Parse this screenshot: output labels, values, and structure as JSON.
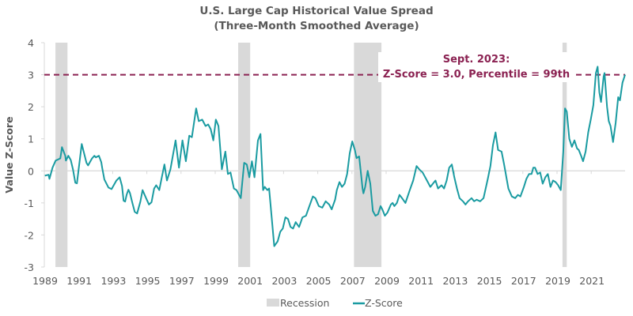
{
  "chart_data": {
    "type": "line",
    "title": "U.S. Large Cap Historical Value Spread",
    "subtitle": "(Three-Month Smoothed Average)",
    "xlabel": "",
    "ylabel": "Value Z-Score",
    "ylim": [
      -3,
      4
    ],
    "yticks": [
      4,
      3,
      2,
      1,
      0,
      -1,
      -2,
      -3
    ],
    "xlim": [
      1989.9,
      2023.75
    ],
    "xtick_labels": [
      "1989",
      "1991",
      "1993",
      "1995",
      "1997",
      "1999",
      "2001",
      "2003",
      "2005",
      "2007",
      "2009",
      "2011",
      "2013",
      "2015",
      "2017",
      "2019",
      "2021"
    ],
    "grid": false,
    "zero_line": true,
    "legend": "bottom",
    "legend_entries": [
      "Recession",
      "Z-Score"
    ],
    "colors": {
      "zscore": "#1a9ba1",
      "recession": "#d9d9d9",
      "threshold": "#8b2252",
      "axis": "#d9d9d9",
      "text": "#595959"
    },
    "recessions": [
      [
        1990.55,
        1991.25
      ],
      [
        2001.2,
        2001.9
      ],
      [
        2007.95,
        2009.55
      ],
      [
        2020.1,
        2020.35
      ]
    ],
    "threshold": {
      "value": 3.0,
      "style": "dashed"
    },
    "annotation": {
      "line1": "Sept. 2023:",
      "line2": "Z-Score = 3.0, Percentile = 99th"
    },
    "series": [
      {
        "name": "Z-Score",
        "points": [
          [
            1989.93,
            -0.15
          ],
          [
            1990.15,
            -0.12
          ],
          [
            1990.2,
            -0.25
          ],
          [
            1990.38,
            0.1
          ],
          [
            1990.56,
            0.32
          ],
          [
            1990.83,
            0.39
          ],
          [
            1990.88,
            0.56
          ],
          [
            1990.93,
            0.74
          ],
          [
            1991.12,
            0.47
          ],
          [
            1991.16,
            0.32
          ],
          [
            1991.3,
            0.47
          ],
          [
            1991.44,
            0.34
          ],
          [
            1991.57,
            0.05
          ],
          [
            1991.71,
            -0.37
          ],
          [
            1991.8,
            -0.39
          ],
          [
            1992.08,
            0.84
          ],
          [
            1992.36,
            0.25
          ],
          [
            1992.45,
            0.17
          ],
          [
            1992.68,
            0.39
          ],
          [
            1992.82,
            0.47
          ],
          [
            1992.9,
            0.42
          ],
          [
            1993.08,
            0.47
          ],
          [
            1993.22,
            0.27
          ],
          [
            1993.27,
            0.1
          ],
          [
            1993.4,
            -0.27
          ],
          [
            1993.64,
            -0.52
          ],
          [
            1993.82,
            -0.57
          ],
          [
            1994.1,
            -0.3
          ],
          [
            1994.29,
            -0.2
          ],
          [
            1994.43,
            -0.47
          ],
          [
            1994.52,
            -0.93
          ],
          [
            1994.61,
            -0.96
          ],
          [
            1994.7,
            -0.74
          ],
          [
            1994.8,
            -0.59
          ],
          [
            1994.89,
            -0.69
          ],
          [
            1995.03,
            -0.99
          ],
          [
            1995.17,
            -1.28
          ],
          [
            1995.31,
            -1.33
          ],
          [
            1995.5,
            -0.96
          ],
          [
            1995.63,
            -0.6
          ],
          [
            1995.83,
            -0.85
          ],
          [
            1996.0,
            -1.05
          ],
          [
            1996.15,
            -0.98
          ],
          [
            1996.3,
            -0.55
          ],
          [
            1996.42,
            -0.45
          ],
          [
            1996.6,
            -0.6
          ],
          [
            1996.75,
            -0.2
          ],
          [
            1996.9,
            0.2
          ],
          [
            1997.05,
            -0.3
          ],
          [
            1997.25,
            0.05
          ],
          [
            1997.55,
            0.95
          ],
          [
            1997.75,
            0.1
          ],
          [
            1997.95,
            0.95
          ],
          [
            1998.15,
            0.3
          ],
          [
            1998.35,
            1.1
          ],
          [
            1998.5,
            1.05
          ],
          [
            1998.75,
            1.95
          ],
          [
            1998.9,
            1.55
          ],
          [
            1999.1,
            1.6
          ],
          [
            1999.3,
            1.4
          ],
          [
            1999.45,
            1.45
          ],
          [
            1999.6,
            1.3
          ],
          [
            1999.75,
            0.95
          ],
          [
            1999.9,
            1.6
          ],
          [
            2000.05,
            1.4
          ],
          [
            2000.25,
            0.05
          ],
          [
            2000.45,
            0.6
          ],
          [
            2000.6,
            -0.1
          ],
          [
            2000.75,
            -0.05
          ],
          [
            2000.95,
            -0.55
          ],
          [
            2001.1,
            -0.6
          ],
          [
            2001.35,
            -0.85
          ],
          [
            2001.55,
            0.25
          ],
          [
            2001.7,
            0.2
          ],
          [
            2001.85,
            -0.2
          ],
          [
            2002.0,
            0.3
          ],
          [
            2002.15,
            -0.2
          ],
          [
            2002.35,
            0.95
          ],
          [
            2002.5,
            1.15
          ],
          [
            2002.65,
            -0.6
          ],
          [
            2002.75,
            -0.5
          ],
          [
            2002.9,
            -0.6
          ],
          [
            2003.0,
            -0.55
          ],
          [
            2003.3,
            -2.35
          ],
          [
            2003.5,
            -2.2
          ],
          [
            2003.65,
            -1.9
          ],
          [
            2003.8,
            -1.8
          ],
          [
            2003.95,
            -1.45
          ],
          [
            2004.1,
            -1.5
          ],
          [
            2004.25,
            -1.75
          ],
          [
            2004.4,
            -1.8
          ],
          [
            2004.55,
            -1.6
          ],
          [
            2004.75,
            -1.75
          ],
          [
            2004.95,
            -1.45
          ],
          [
            2005.15,
            -1.4
          ],
          [
            2005.35,
            -1.1
          ],
          [
            2005.55,
            -0.8
          ],
          [
            2005.7,
            -0.85
          ],
          [
            2005.9,
            -1.1
          ],
          [
            2006.1,
            -1.15
          ],
          [
            2006.3,
            -0.95
          ],
          [
            2006.5,
            -1.05
          ],
          [
            2006.65,
            -1.2
          ],
          [
            2006.85,
            -0.9
          ],
          [
            2006.95,
            -0.6
          ],
          [
            2007.1,
            -0.35
          ],
          [
            2007.25,
            -0.5
          ],
          [
            2007.4,
            -0.4
          ],
          [
            2007.55,
            -0.1
          ],
          [
            2007.7,
            0.55
          ],
          [
            2007.85,
            0.92
          ],
          [
            2008.0,
            0.65
          ],
          [
            2008.1,
            0.4
          ],
          [
            2008.25,
            0.45
          ],
          [
            2008.45,
            -0.55
          ],
          [
            2008.5,
            -0.7
          ],
          [
            2008.6,
            -0.5
          ],
          [
            2008.75,
            0.0
          ],
          [
            2008.9,
            -0.4
          ],
          [
            2009.05,
            -1.25
          ],
          [
            2009.2,
            -1.4
          ],
          [
            2009.35,
            -1.35
          ],
          [
            2009.5,
            -1.1
          ],
          [
            2009.6,
            -1.2
          ],
          [
            2009.75,
            -1.4
          ],
          [
            2009.9,
            -1.3
          ],
          [
            2010.1,
            -1.05
          ],
          [
            2010.2,
            -1.0
          ],
          [
            2010.3,
            -1.1
          ],
          [
            2010.45,
            -1.0
          ],
          [
            2010.6,
            -0.75
          ],
          [
            2010.75,
            -0.85
          ],
          [
            2010.95,
            -1.0
          ],
          [
            2011.2,
            -0.6
          ],
          [
            2011.4,
            -0.3
          ],
          [
            2011.6,
            0.15
          ],
          [
            2011.75,
            0.05
          ],
          [
            2011.95,
            -0.05
          ],
          [
            2012.2,
            -0.3
          ],
          [
            2012.4,
            -0.5
          ],
          [
            2012.55,
            -0.4
          ],
          [
            2012.7,
            -0.3
          ],
          [
            2012.85,
            -0.55
          ],
          [
            2013.05,
            -0.45
          ],
          [
            2013.2,
            -0.55
          ],
          [
            2013.35,
            -0.3
          ],
          [
            2013.5,
            0.1
          ],
          [
            2013.65,
            0.2
          ],
          [
            2013.8,
            -0.2
          ],
          [
            2013.95,
            -0.55
          ],
          [
            2014.1,
            -0.85
          ],
          [
            2014.3,
            -0.95
          ],
          [
            2014.45,
            -1.05
          ],
          [
            2014.6,
            -0.95
          ],
          [
            2014.8,
            -0.85
          ],
          [
            2014.95,
            -0.95
          ],
          [
            2015.1,
            -0.9
          ],
          [
            2015.3,
            -0.95
          ],
          [
            2015.5,
            -0.85
          ],
          [
            2015.75,
            -0.25
          ],
          [
            2015.9,
            0.15
          ],
          [
            2016.05,
            0.8
          ],
          [
            2016.2,
            1.2
          ],
          [
            2016.35,
            0.65
          ],
          [
            2016.55,
            0.6
          ],
          [
            2016.7,
            0.2
          ],
          [
            2016.95,
            -0.55
          ],
          [
            2017.15,
            -0.8
          ],
          [
            2017.35,
            -0.85
          ],
          [
            2017.5,
            -0.75
          ],
          [
            2017.65,
            -0.8
          ],
          [
            2017.85,
            -0.5
          ],
          [
            2018.0,
            -0.25
          ],
          [
            2018.15,
            -0.1
          ],
          [
            2018.3,
            -0.1
          ],
          [
            2018.4,
            0.1
          ],
          [
            2018.5,
            0.1
          ],
          [
            2018.65,
            -0.1
          ],
          [
            2018.8,
            -0.05
          ],
          [
            2018.95,
            -0.4
          ],
          [
            2019.1,
            -0.2
          ],
          [
            2019.25,
            -0.1
          ],
          [
            2019.4,
            -0.5
          ],
          [
            2019.55,
            -0.3
          ],
          [
            2019.7,
            -0.35
          ],
          [
            2019.85,
            -0.45
          ],
          [
            2020.0,
            -0.6
          ],
          [
            2020.15,
            0.6
          ],
          [
            2020.25,
            1.95
          ],
          [
            2020.35,
            1.85
          ],
          [
            2020.5,
            1.0
          ],
          [
            2020.65,
            0.75
          ],
          [
            2020.8,
            0.95
          ],
          [
            2020.95,
            0.7
          ],
          [
            2021.05,
            0.65
          ],
          [
            2021.2,
            0.45
          ],
          [
            2021.3,
            0.3
          ],
          [
            2021.45,
            0.6
          ],
          [
            2021.6,
            1.2
          ],
          [
            2021.75,
            1.6
          ],
          [
            2021.9,
            2.05
          ],
          [
            2022.05,
            3.05
          ],
          [
            2022.15,
            3.25
          ],
          [
            2022.25,
            2.45
          ],
          [
            2022.35,
            2.15
          ],
          [
            2022.5,
            2.95
          ],
          [
            2022.55,
            3.05
          ],
          [
            2022.7,
            2.0
          ],
          [
            2022.8,
            1.55
          ],
          [
            2022.9,
            1.4
          ],
          [
            2023.05,
            0.9
          ],
          [
            2023.2,
            1.5
          ],
          [
            2023.35,
            2.3
          ],
          [
            2023.45,
            2.2
          ],
          [
            2023.6,
            2.75
          ],
          [
            2023.75,
            3.0
          ]
        ]
      }
    ]
  }
}
